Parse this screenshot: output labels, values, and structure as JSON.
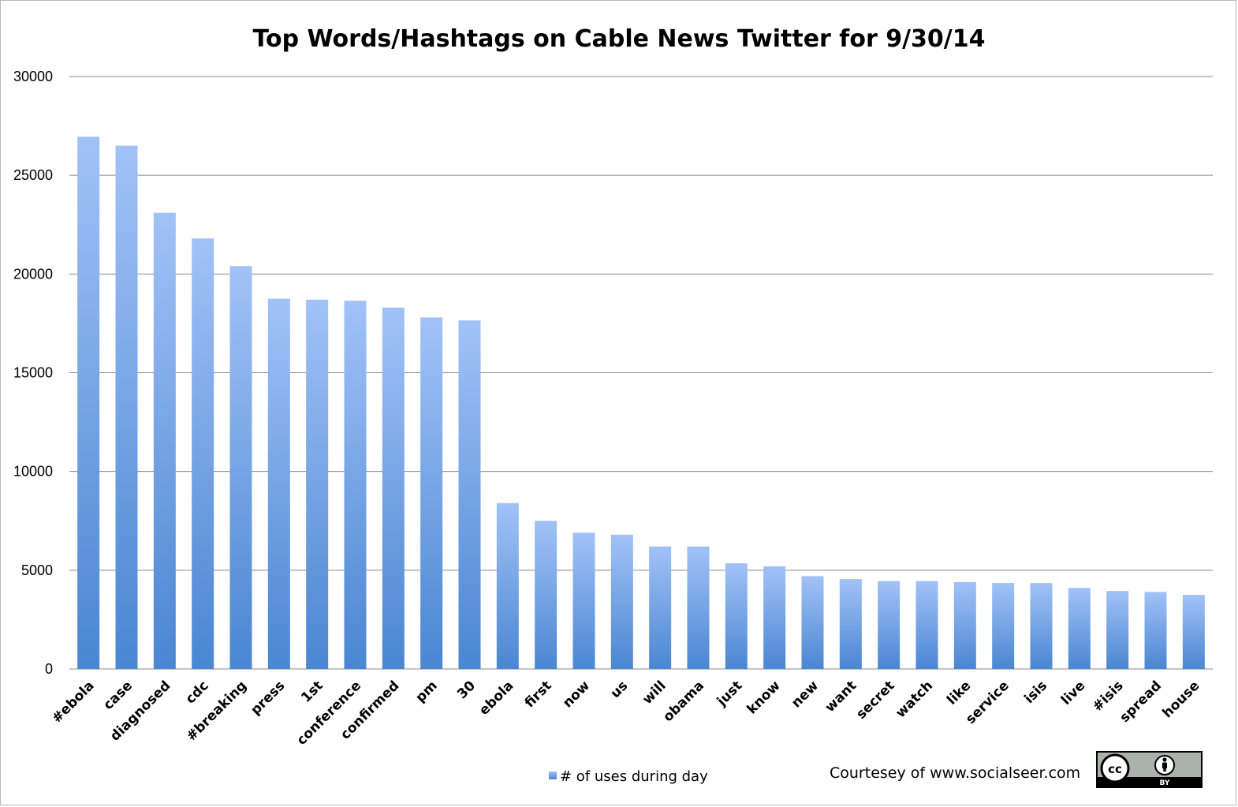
{
  "chart_data": {
    "type": "bar",
    "title": "Top Words/Hashtags on Cable News Twitter for 9/30/14",
    "categories": [
      "#ebola",
      "case",
      "diagnosed",
      "cdc",
      "#breaking",
      "press",
      "1st",
      "conference",
      "confirmed",
      "pm",
      "30",
      "ebola",
      "first",
      "now",
      "us",
      "will",
      "obama",
      "just",
      "know",
      "new",
      "want",
      "secret",
      "watch",
      "like",
      "service",
      "isis",
      "live",
      "#isis",
      "spread",
      "house"
    ],
    "series": [
      {
        "name": "# of uses during day",
        "values": [
          26950,
          26500,
          23100,
          21800,
          20400,
          18750,
          18700,
          18650,
          18300,
          17800,
          17650,
          8400,
          7500,
          6900,
          6800,
          6200,
          6200,
          5350,
          5200,
          4700,
          4550,
          4450,
          4450,
          4400,
          4350,
          4350,
          4100,
          3950,
          3900,
          3750
        ]
      }
    ],
    "ylim": [
      0,
      30000
    ],
    "yticks": [
      "0",
      "5000",
      "10000",
      "15000",
      "20000",
      "25000",
      "30000"
    ],
    "xlabel": "",
    "ylabel": "",
    "grid": true,
    "legend_position": "bottom-center",
    "colors": {
      "bar_top": "#a2c2f7",
      "bar_bottom": "#4a86d2",
      "grid": "#8a8a8a"
    }
  },
  "credit": "Courtesey of www.socialseer.com",
  "license_badge": {
    "icon": "cc-by-icon",
    "cc_label": "cc",
    "by_label": "BY"
  }
}
